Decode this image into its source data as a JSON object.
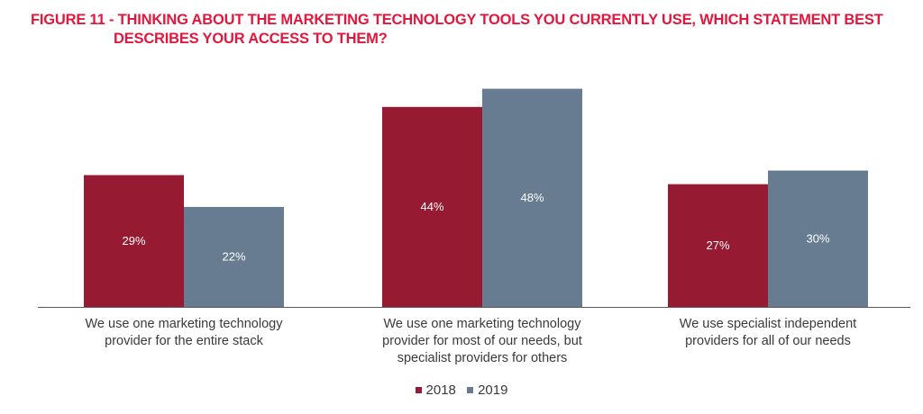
{
  "title_line1": "FIGURE 11 - THINKING ABOUT THE MARKETING TECHNOLOGY TOOLS YOU CURRENTLY USE, WHICH STATEMENT BEST",
  "title_line2": "DESCRIBES YOUR ACCESS TO THEM?",
  "colors": {
    "s2018": "#951a32",
    "s2019": "#677c90",
    "title": "#e2173e",
    "axis": "#5a5a5a"
  },
  "chart_data": {
    "type": "bar",
    "title": "FIGURE 11 - THINKING ABOUT THE MARKETING TECHNOLOGY TOOLS YOU CURRENTLY USE, WHICH STATEMENT BEST DESCRIBES YOUR ACCESS TO THEM?",
    "categories": [
      [
        "We use one marketing technology",
        "provider for the entire stack"
      ],
      [
        "We use one marketing technology",
        "provider for most of our needs, but",
        "specialist providers for others"
      ],
      [
        "We use specialist independent",
        "providers for all of our needs"
      ]
    ],
    "series": [
      {
        "name": "2018",
        "values": [
          29,
          44,
          27
        ],
        "labels": [
          "29%",
          "44%",
          "27%"
        ]
      },
      {
        "name": "2019",
        "values": [
          22,
          48,
          30
        ],
        "labels": [
          "22%",
          "48%",
          "30%"
        ]
      }
    ],
    "ylim": [
      0,
      50
    ],
    "grid": false,
    "legend_position": "bottom-center"
  }
}
